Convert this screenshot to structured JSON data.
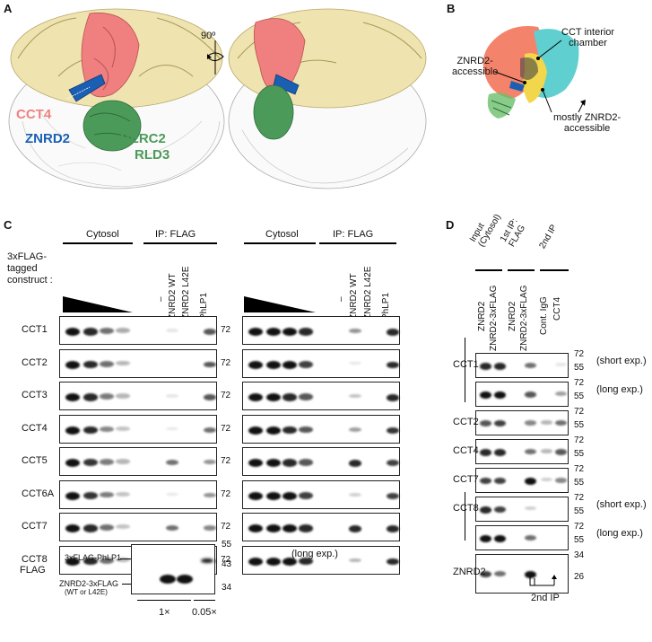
{
  "panels": {
    "A": {
      "letter": "A",
      "rotation": "90º",
      "labels": {
        "cct4": "CCT4",
        "znrd2": "ZNRD2",
        "herc2": "HERC2",
        "rld3": "RLD3"
      },
      "colors": {
        "cct4": "#f08080",
        "znrd2": "#1a5fb4",
        "herc2": "#4c9a5a",
        "cct_ring": "#efe3b0"
      }
    },
    "B": {
      "letter": "B",
      "labels": {
        "interior": "CCT interior\nchamber",
        "accessible": "ZNRD2-\naccessible",
        "mostly": "mostly ZNRD2-\naccessible"
      },
      "colors": {
        "salmon": "#f4836b",
        "cyan": "#5fd0cf",
        "yellow": "#f2d64b"
      }
    },
    "C": {
      "letter": "C",
      "header_left": {
        "cytosol": "Cytosol",
        "ip": "IP: FLAG"
      },
      "header_right": {
        "cytosol": "Cytosol",
        "ip": "IP: FLAG"
      },
      "construct_label": "3xFLAG-\ntagged\nconstruct :",
      "lanes": [
        "–",
        "ZNRD2 WT",
        "ZNRD2 L42E",
        "PhLP1"
      ],
      "rows": [
        "CCT1",
        "CCT2",
        "CCT3",
        "CCT4",
        "CCT5",
        "CCT6A",
        "CCT7",
        "CCT8"
      ],
      "mw": "72",
      "flag_row": "FLAG",
      "flag_mw": [
        "55",
        "43",
        "34"
      ],
      "flag_annot": {
        "phlp1": "3xFLAG-PhLP1",
        "znrd2": "ZNRD2-3xFLAG",
        "znrd2_sub": "(WT or L42E)"
      },
      "load": {
        "left": "1×",
        "right": "0.05×"
      },
      "long_exp": "(long exp.)"
    },
    "D": {
      "letter": "D",
      "headers": {
        "input": "Input\n(Cytosol)",
        "ip1": "1st IP:\nFLAG",
        "ip1_sup": "st",
        "ip2": "2nd IP"
      },
      "lanes": [
        "ZNRD2",
        "ZNRD2-3xFLAG",
        "ZNRD2",
        "ZNRD2-3xFLAG",
        "Cont. IgG",
        "CCT4"
      ],
      "rows": [
        {
          "name": "CCT1",
          "mw": [
            "72",
            "55"
          ],
          "note": "(short exp.)"
        },
        {
          "name": "",
          "mw": [
            "72",
            "55"
          ],
          "note": "(long exp.)"
        },
        {
          "name": "CCT2",
          "mw": [
            "72",
            "55"
          ],
          "note": ""
        },
        {
          "name": "CCT4",
          "mw": [
            "72",
            "55"
          ],
          "note": ""
        },
        {
          "name": "CCT7",
          "mw": [
            "72",
            "55"
          ],
          "note": ""
        },
        {
          "name": "CCT8",
          "mw": [
            "72",
            "55"
          ],
          "note": "(short exp.)"
        },
        {
          "name": "",
          "mw": [
            "72",
            "55"
          ],
          "note": "(long exp.)"
        },
        {
          "name": "ZNRD2",
          "mw": [
            "34",
            "26"
          ],
          "note": ""
        }
      ],
      "footer": "2nd IP"
    }
  }
}
